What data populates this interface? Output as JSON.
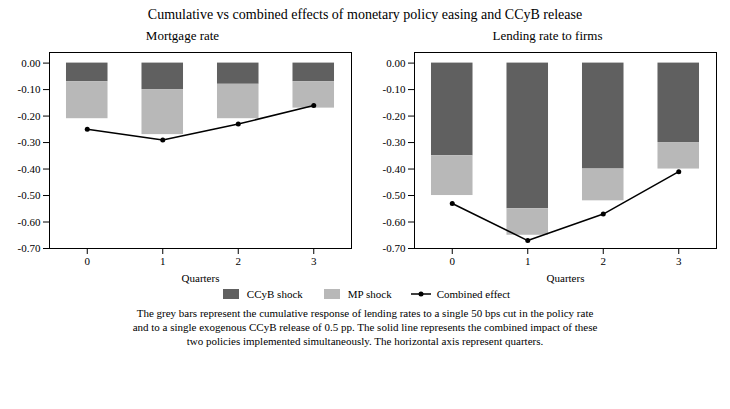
{
  "title": "Cumulative vs combined effects of monetary policy easing and CCyB release",
  "caption": "The grey bars represent the cumulative response of lending rates to a single 50 bps cut in the policy rate\nand to a single exogenous CCyB release of 0.5 pp. The solid line represents the combined impact of these\ntwo policies implemented simultaneously. The horizontal axis represent quarters.",
  "chart_data": [
    {
      "type": "bar",
      "title": "Mortgage rate",
      "xlabel": "Quarters",
      "stacked": true,
      "x": [
        0,
        1,
        2,
        3
      ],
      "xlim": [
        -0.5,
        3.5
      ],
      "xticks": [
        0,
        1,
        2,
        3
      ],
      "ylim": [
        -0.7,
        0.04
      ],
      "yticks": [
        {
          "value": 0.0,
          "label": "0.00"
        },
        {
          "value": -0.1,
          "label": "-0.10"
        },
        {
          "value": -0.2,
          "label": "-0.20"
        },
        {
          "value": -0.3,
          "label": "-0.30"
        },
        {
          "value": -0.4,
          "label": "-0.40"
        },
        {
          "value": -0.5,
          "label": "-0.50"
        },
        {
          "value": -0.6,
          "label": "-0.60"
        },
        {
          "value": -0.7,
          "label": "-0.70"
        }
      ],
      "series": [
        {
          "name": "CCyB shock",
          "type": "bar",
          "color": "#606060",
          "values": [
            -0.07,
            -0.1,
            -0.08,
            -0.07
          ]
        },
        {
          "name": "MP shock",
          "type": "bar",
          "color": "#b8b8b8",
          "values": [
            -0.14,
            -0.17,
            -0.13,
            -0.1
          ]
        },
        {
          "name": "Combined effect",
          "type": "line",
          "color": "#000000",
          "marker": "circle",
          "values": [
            -0.25,
            -0.29,
            -0.23,
            -0.16
          ]
        }
      ]
    },
    {
      "type": "bar",
      "title": "Lending rate to firms",
      "xlabel": "Quarters",
      "stacked": true,
      "x": [
        0,
        1,
        2,
        3
      ],
      "xlim": [
        -0.5,
        3.5
      ],
      "xticks": [
        0,
        1,
        2,
        3
      ],
      "ylim": [
        -0.7,
        0.04
      ],
      "yticks": [
        {
          "value": 0.0,
          "label": "0.00"
        },
        {
          "value": -0.1,
          "label": "-0.10"
        },
        {
          "value": -0.2,
          "label": "-0.20"
        },
        {
          "value": -0.3,
          "label": "-0.30"
        },
        {
          "value": -0.4,
          "label": "-0.40"
        },
        {
          "value": -0.5,
          "label": "-0.50"
        },
        {
          "value": -0.6,
          "label": "-0.60"
        },
        {
          "value": -0.7,
          "label": "-0.70"
        }
      ],
      "series": [
        {
          "name": "CCyB shock",
          "type": "bar",
          "color": "#606060",
          "values": [
            -0.35,
            -0.55,
            -0.4,
            -0.3
          ]
        },
        {
          "name": "MP shock",
          "type": "bar",
          "color": "#b8b8b8",
          "values": [
            -0.15,
            -0.1,
            -0.12,
            -0.1
          ]
        },
        {
          "name": "Combined effect",
          "type": "line",
          "color": "#000000",
          "marker": "circle",
          "values": [
            -0.53,
            -0.67,
            -0.57,
            -0.41
          ]
        }
      ]
    }
  ]
}
